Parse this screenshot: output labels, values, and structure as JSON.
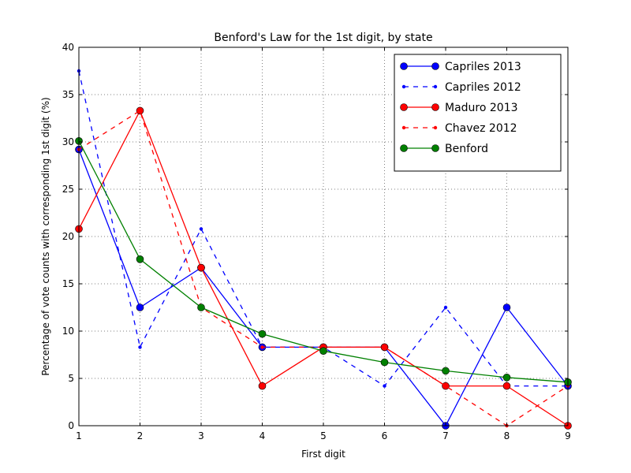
{
  "chart_data": {
    "type": "line",
    "title": "Benford's Law for the 1st digit, by state",
    "xlabel": "First digit",
    "ylabel": "Percentage of vote counts with corresponding 1st digit (%)",
    "x": [
      1,
      2,
      3,
      4,
      5,
      6,
      7,
      8,
      9
    ],
    "xlim": [
      1,
      9
    ],
    "ylim": [
      0,
      40
    ],
    "xticks": [
      "1",
      "2",
      "3",
      "4",
      "5",
      "6",
      "7",
      "8",
      "9"
    ],
    "yticks": [
      "0",
      "5",
      "10",
      "15",
      "20",
      "25",
      "30",
      "35",
      "40"
    ],
    "grid": true,
    "legend_position": "top-right",
    "series": [
      {
        "name": "Capriles 2013",
        "color": "#0000ff",
        "dash": "solid",
        "marker": "large",
        "values": [
          29.2,
          12.5,
          16.7,
          8.3,
          8.3,
          8.3,
          0,
          12.5,
          4.2
        ]
      },
      {
        "name": "Capriles 2012",
        "color": "#0000ff",
        "dash": "dashed",
        "marker": "small",
        "values": [
          37.5,
          8.3,
          20.8,
          8.3,
          8.3,
          4.2,
          12.5,
          4.2,
          4.2
        ]
      },
      {
        "name": "Maduro 2013",
        "color": "#ff0000",
        "dash": "solid",
        "marker": "large",
        "values": [
          20.8,
          33.3,
          16.7,
          4.2,
          8.3,
          8.3,
          4.2,
          4.2,
          0
        ]
      },
      {
        "name": "Chavez 2012",
        "color": "#ff0000",
        "dash": "dashed",
        "marker": "small",
        "values": [
          29.2,
          33.3,
          12.5,
          8.3,
          8.3,
          8.3,
          4.2,
          0,
          4.2
        ]
      },
      {
        "name": "Benford",
        "color": "#008000",
        "dash": "solid",
        "marker": "large",
        "values": [
          30.1,
          17.6,
          12.5,
          9.7,
          7.9,
          6.7,
          5.8,
          5.1,
          4.6
        ]
      }
    ]
  }
}
